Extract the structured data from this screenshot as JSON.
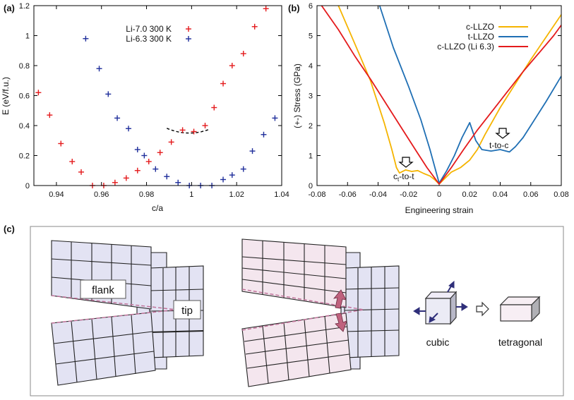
{
  "chart_data": [
    {
      "id": "a",
      "type": "scatter",
      "panel_label": "(a)",
      "xlabel": "c/a",
      "ylabel": "E (eV/f.u.)",
      "xlim": [
        0.93,
        1.04
      ],
      "ylim": [
        0,
        1.2
      ],
      "xticks": [
        "0.94",
        "0.96",
        "0.98",
        "1",
        "1.02",
        "1.04"
      ],
      "xtick_values": [
        0.94,
        0.96,
        0.98,
        1.0,
        1.02,
        1.04
      ],
      "yticks": [
        "0",
        "0.2",
        "0.4",
        "0.6",
        "0.8",
        "1",
        "1.2"
      ],
      "ytick_values": [
        0,
        0.2,
        0.4,
        0.6,
        0.8,
        1.0,
        1.2
      ],
      "legend_placement": "top-right",
      "series": [
        {
          "name": "Li-7.0 300 K",
          "color": "#e41a1c",
          "marker": "plus",
          "x": [
            0.932,
            0.937,
            0.942,
            0.947,
            0.951,
            0.956,
            0.961,
            0.966,
            0.971,
            0.976,
            0.981,
            0.986,
            0.991,
            0.996,
            1.001,
            1.006,
            1.01,
            1.014,
            1.018,
            1.023,
            1.028,
            1.033
          ],
          "y": [
            0.62,
            0.47,
            0.28,
            0.16,
            0.09,
            0.0,
            0.0,
            0.02,
            0.05,
            0.1,
            0.16,
            0.22,
            0.29,
            0.37,
            0.36,
            0.4,
            0.52,
            0.68,
            0.8,
            0.88,
            1.06,
            1.18
          ]
        },
        {
          "name": "Li-6.3 300 K",
          "color": "#1f2e9b",
          "marker": "plus",
          "x": [
            0.953,
            0.959,
            0.963,
            0.967,
            0.972,
            0.976,
            0.979,
            0.984,
            0.989,
            0.994,
            0.999,
            1.004,
            1.009,
            1.014,
            1.018,
            1.023,
            1.027,
            1.032,
            1.037
          ],
          "y": [
            0.98,
            0.78,
            0.61,
            0.45,
            0.38,
            0.24,
            0.2,
            0.11,
            0.06,
            0.02,
            0.0,
            0.0,
            0.0,
            0.04,
            0.07,
            0.11,
            0.23,
            0.34,
            0.45
          ]
        }
      ],
      "fit_curve": {
        "color": "#000000",
        "style": "dashed",
        "center": 0.999,
        "min": 0.35,
        "curvature": 320,
        "x_from": 0.989,
        "x_to": 1.008
      }
    },
    {
      "id": "b",
      "type": "line",
      "panel_label": "(b)",
      "xlabel": "Engineering strain",
      "ylabel": "(+-) Stress (GPa)",
      "xlim": [
        -0.08,
        0.08
      ],
      "ylim": [
        0,
        6
      ],
      "xticks": [
        "-0.08",
        "-0.06",
        "-0.04",
        "-0.02",
        "0",
        "0.02",
        "0.04",
        "0.06",
        "0.08"
      ],
      "xtick_values": [
        -0.08,
        -0.06,
        -0.04,
        -0.02,
        0,
        0.02,
        0.04,
        0.06,
        0.08
      ],
      "yticks": [
        "0",
        "1",
        "2",
        "3",
        "4",
        "5",
        "6"
      ],
      "ytick_values": [
        0,
        1,
        2,
        3,
        4,
        5,
        6
      ],
      "legend_placement": "top-right",
      "series": [
        {
          "name": "c-LLZO",
          "color": "#f5b400",
          "x": [
            -0.066,
            -0.055,
            -0.045,
            -0.036,
            -0.031,
            -0.028,
            -0.026,
            -0.022,
            -0.018,
            -0.014,
            -0.01,
            -0.006,
            -0.003,
            0.0,
            0.004,
            0.008,
            0.014,
            0.02,
            0.025,
            0.03,
            0.04,
            0.05,
            0.06,
            0.07,
            0.08
          ],
          "y": [
            6.0,
            4.7,
            3.5,
            2.1,
            1.2,
            0.6,
            0.42,
            0.52,
            0.47,
            0.5,
            0.4,
            0.32,
            0.2,
            0.05,
            0.25,
            0.45,
            0.6,
            0.85,
            1.2,
            1.7,
            2.6,
            3.4,
            4.2,
            4.95,
            5.7
          ]
        },
        {
          "name": "t-LLZO",
          "color": "#1f6fb4",
          "x": [
            -0.039,
            -0.03,
            -0.02,
            -0.012,
            -0.006,
            0.0,
            0.005,
            0.01,
            0.015,
            0.02,
            0.024,
            0.028,
            0.034,
            0.04,
            0.046,
            0.05,
            0.055,
            0.06,
            0.07,
            0.08
          ],
          "y": [
            6.0,
            4.6,
            3.3,
            2.2,
            1.2,
            0.08,
            0.5,
            1.0,
            1.6,
            2.1,
            1.5,
            1.2,
            1.15,
            1.2,
            1.12,
            1.3,
            1.6,
            2.0,
            2.8,
            3.65
          ]
        },
        {
          "name": "c-LLZO (Li 6.3)",
          "color": "#e41a1c",
          "x": [
            -0.077,
            -0.066,
            -0.055,
            -0.045,
            -0.035,
            -0.025,
            -0.015,
            -0.008,
            0.0,
            0.008,
            0.016,
            0.025,
            0.035,
            0.045,
            0.055,
            0.065,
            0.075,
            0.08
          ],
          "y": [
            6.0,
            5.2,
            4.3,
            3.55,
            2.75,
            1.95,
            1.15,
            0.6,
            0.05,
            0.6,
            1.2,
            1.85,
            2.5,
            3.15,
            3.8,
            4.4,
            5.0,
            5.35
          ]
        }
      ],
      "annotations": [
        {
          "text_main": "c",
          "text_sub": "t",
          "text_tail": "-to-t",
          "x": -0.025,
          "y": 0.55
        },
        {
          "text_main": "t-to-c",
          "x": 0.041,
          "y": 1.6
        }
      ]
    }
  ],
  "panel_c": {
    "panel_label": "(c)",
    "label_flank": "flank",
    "label_tip": "tip",
    "label_cubic": "cubic",
    "label_tetragonal": "tetragonal",
    "grid_fill": "#e3e3f3",
    "strained_fill": "#f4e6ee",
    "crack_color": "#c0739a",
    "arrow_color": "#c0627e",
    "cube_arrow_color": "#2f2f7a"
  }
}
